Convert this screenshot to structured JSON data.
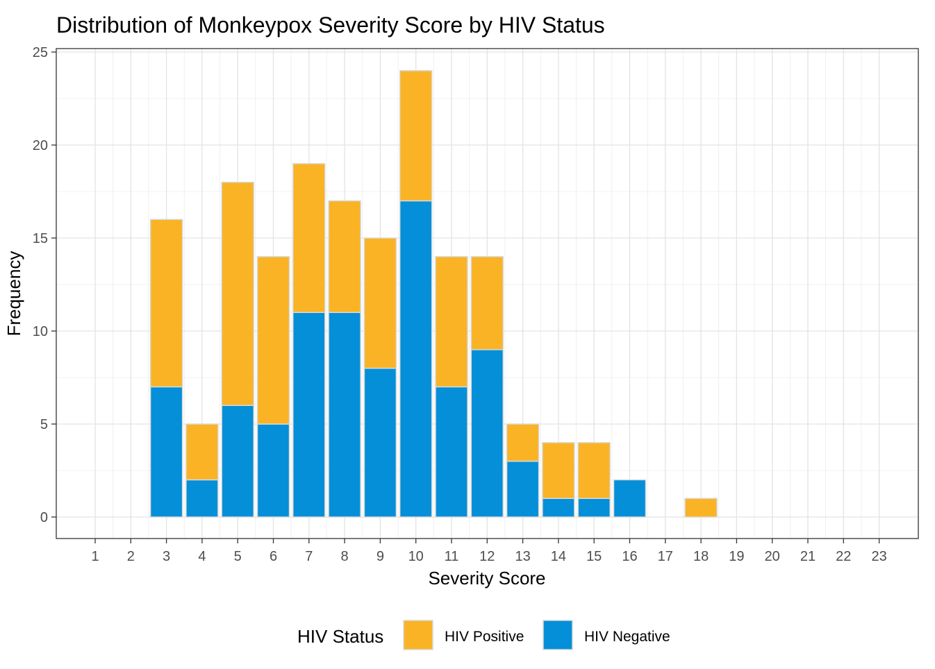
{
  "chart_data": {
    "type": "bar",
    "stacked": true,
    "title": "Distribution of Monkeypox Severity Score by HIV Status",
    "xlabel": "Severity Score",
    "ylabel": "Frequency",
    "x_ticks": [
      1,
      2,
      3,
      4,
      5,
      6,
      7,
      8,
      9,
      10,
      11,
      12,
      13,
      14,
      15,
      16,
      17,
      18,
      19,
      20,
      21,
      22,
      23
    ],
    "ylim": [
      0,
      25
    ],
    "y_ticks": [
      0,
      5,
      10,
      15,
      20,
      25
    ],
    "grid": true,
    "legend": {
      "title": "HIV Status",
      "placement": "bottom",
      "entries": [
        {
          "name": "HIV Positive",
          "color": "#F9B324"
        },
        {
          "name": "HIV Negative",
          "color": "#048FD8"
        }
      ]
    },
    "categories": [
      3,
      4,
      5,
      6,
      7,
      8,
      9,
      10,
      11,
      12,
      13,
      14,
      15,
      16,
      18
    ],
    "series": [
      {
        "name": "HIV Negative",
        "color": "#048FD8",
        "values": [
          7,
          2,
          6,
          5,
          11,
          11,
          8,
          17,
          7,
          9,
          3,
          1,
          1,
          2,
          0
        ]
      },
      {
        "name": "HIV Positive",
        "color": "#F9B324",
        "values": [
          9,
          3,
          12,
          9,
          8,
          6,
          7,
          7,
          7,
          5,
          2,
          3,
          3,
          0,
          1
        ]
      }
    ]
  }
}
